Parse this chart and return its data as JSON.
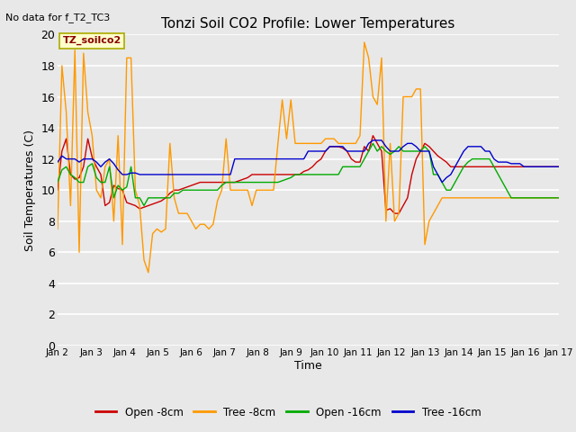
{
  "title": "Tonzi Soil CO2 Profile: Lower Temperatures",
  "top_left_text": "No data for f_T2_TC3",
  "watermark": "TZ_soilco2",
  "xlabel": "Time",
  "ylabel": "Soil Temperatures (C)",
  "ylim": [
    0,
    20
  ],
  "yticks": [
    0,
    2,
    4,
    6,
    8,
    10,
    12,
    14,
    16,
    18,
    20
  ],
  "background_color": "#e8e8e8",
  "plot_bg_color": "#e8e8e8",
  "grid_color": "#ffffff",
  "legend": [
    {
      "label": "Open -8cm",
      "color": "#cc0000"
    },
    {
      "label": "Tree -8cm",
      "color": "#ff9900"
    },
    {
      "label": "Open -16cm",
      "color": "#00aa00"
    },
    {
      "label": "Tree -16cm",
      "color": "#0000cc"
    }
  ],
  "xlabels": [
    "Jan 2",
    "Jan 3",
    "Jan 4",
    "Jan 5",
    "Jan 6",
    "Jan 7",
    "Jan 8",
    "Jan 9",
    "Jan 10",
    "Jan 11",
    "Jan 12",
    "Jan 13",
    "Jan 14",
    "Jan 15",
    "Jan 16",
    "Jan 17"
  ],
  "open8": [
    10.0,
    12.5,
    13.3,
    11.0,
    10.7,
    10.8,
    11.5,
    13.3,
    12.1,
    11.5,
    11.0,
    9.0,
    9.2,
    10.3,
    10.1,
    10.0,
    9.2,
    9.1,
    9.0,
    8.8,
    8.9,
    9.0,
    9.1,
    9.2,
    9.3,
    9.5,
    9.8,
    10.0,
    10.0,
    10.1,
    10.2,
    10.3,
    10.4,
    10.5,
    10.5,
    10.5,
    10.5,
    10.5,
    10.5,
    10.5,
    10.5,
    10.5,
    10.6,
    10.7,
    10.8,
    11.0,
    11.0,
    11.0,
    11.0,
    11.0,
    11.0,
    11.0,
    11.0,
    11.0,
    11.0,
    11.0,
    11.0,
    11.2,
    11.3,
    11.5,
    11.8,
    12.0,
    12.5,
    12.8,
    12.8,
    12.8,
    12.7,
    12.5,
    12.0,
    11.8,
    11.8,
    12.8,
    12.5,
    13.5,
    13.0,
    12.5,
    8.7,
    8.8,
    8.5,
    8.5,
    9.0,
    9.5,
    11.0,
    12.0,
    12.5,
    13.0,
    12.8,
    12.5,
    12.2,
    12.0,
    11.8,
    11.5,
    11.5,
    11.5,
    11.5,
    11.5,
    11.5,
    11.5,
    11.5,
    11.5,
    11.5,
    11.5,
    11.5,
    11.5,
    11.5,
    11.5,
    11.5,
    11.5,
    11.5,
    11.5,
    11.5,
    11.5,
    11.5,
    11.5,
    11.5,
    11.5,
    11.5
  ],
  "tree8": [
    7.5,
    18.0,
    15.0,
    9.0,
    19.0,
    6.0,
    18.8,
    15.0,
    13.5,
    10.0,
    9.5,
    11.5,
    12.0,
    8.0,
    13.5,
    6.5,
    18.5,
    18.5,
    10.0,
    9.0,
    5.5,
    4.7,
    7.2,
    7.5,
    7.3,
    7.5,
    13.0,
    9.5,
    8.5,
    8.5,
    8.5,
    8.0,
    7.5,
    7.8,
    7.8,
    7.5,
    7.8,
    9.3,
    10.0,
    13.3,
    10.0,
    10.0,
    10.0,
    10.0,
    10.0,
    9.0,
    10.0,
    10.0,
    10.0,
    10.0,
    10.0,
    13.0,
    15.8,
    13.3,
    15.8,
    13.0,
    13.0,
    13.0,
    13.0,
    13.0,
    13.0,
    13.0,
    13.3,
    13.3,
    13.3,
    13.0,
    13.0,
    13.0,
    13.0,
    13.0,
    13.5,
    19.5,
    18.5,
    16.0,
    15.5,
    18.5,
    8.0,
    13.0,
    8.0,
    8.5,
    16.0,
    16.0,
    16.0,
    16.5,
    16.5,
    6.5,
    8.0,
    8.5,
    9.0,
    9.5,
    9.5,
    9.5,
    9.5,
    9.5,
    9.5,
    9.5,
    9.5,
    9.5,
    9.5,
    9.5,
    9.5,
    9.5,
    9.5,
    9.5,
    9.5,
    9.5,
    9.5,
    9.5,
    9.5,
    9.5,
    9.5,
    9.5,
    9.5,
    9.5,
    9.5,
    9.5,
    9.5
  ],
  "open16": [
    10.5,
    11.3,
    11.5,
    11.0,
    10.8,
    10.5,
    10.5,
    11.5,
    11.7,
    10.8,
    10.5,
    10.5,
    11.5,
    9.5,
    10.3,
    10.0,
    10.2,
    11.5,
    9.5,
    9.5,
    9.0,
    9.5,
    9.5,
    9.5,
    9.5,
    9.5,
    9.5,
    9.8,
    9.8,
    10.0,
    10.0,
    10.0,
    10.0,
    10.0,
    10.0,
    10.0,
    10.0,
    10.0,
    10.3,
    10.5,
    10.5,
    10.5,
    10.5,
    10.5,
    10.5,
    10.5,
    10.5,
    10.5,
    10.5,
    10.5,
    10.5,
    10.5,
    10.6,
    10.7,
    10.8,
    11.0,
    11.0,
    11.0,
    11.0,
    11.0,
    11.0,
    11.0,
    11.0,
    11.0,
    11.0,
    11.0,
    11.5,
    11.5,
    11.5,
    11.5,
    11.5,
    12.0,
    12.5,
    13.0,
    12.5,
    12.8,
    12.5,
    12.3,
    12.5,
    12.8,
    12.5,
    12.5,
    12.5,
    12.5,
    12.5,
    12.8,
    12.5,
    11.0,
    11.0,
    10.5,
    10.0,
    10.0,
    10.5,
    11.0,
    11.5,
    11.8,
    12.0,
    12.0,
    12.0,
    12.0,
    12.0,
    11.5,
    11.0,
    10.5,
    10.0,
    9.5,
    9.5,
    9.5,
    9.5,
    9.5,
    9.5,
    9.5,
    9.5,
    9.5,
    9.5,
    9.5,
    9.5
  ],
  "tree16": [
    11.8,
    12.2,
    12.0,
    12.0,
    12.0,
    11.8,
    12.0,
    12.0,
    12.0,
    11.8,
    11.5,
    11.8,
    12.0,
    11.7,
    11.3,
    11.0,
    11.0,
    11.1,
    11.1,
    11.0,
    11.0,
    11.0,
    11.0,
    11.0,
    11.0,
    11.0,
    11.0,
    11.0,
    11.0,
    11.0,
    11.0,
    11.0,
    11.0,
    11.0,
    11.0,
    11.0,
    11.0,
    11.0,
    11.0,
    11.0,
    11.0,
    12.0,
    12.0,
    12.0,
    12.0,
    12.0,
    12.0,
    12.0,
    12.0,
    12.0,
    12.0,
    12.0,
    12.0,
    12.0,
    12.0,
    12.0,
    12.0,
    12.0,
    12.5,
    12.5,
    12.5,
    12.5,
    12.5,
    12.8,
    12.8,
    12.8,
    12.8,
    12.5,
    12.5,
    12.5,
    12.5,
    12.5,
    13.0,
    13.2,
    13.2,
    13.2,
    12.8,
    12.5,
    12.5,
    12.5,
    12.8,
    13.0,
    13.0,
    12.8,
    12.5,
    12.5,
    12.5,
    11.5,
    11.0,
    10.5,
    10.8,
    11.0,
    11.5,
    12.0,
    12.5,
    12.8,
    12.8,
    12.8,
    12.8,
    12.5,
    12.5,
    12.0,
    11.8,
    11.8,
    11.8,
    11.7,
    11.7,
    11.7,
    11.5,
    11.5,
    11.5,
    11.5,
    11.5,
    11.5,
    11.5,
    11.5,
    11.5
  ]
}
